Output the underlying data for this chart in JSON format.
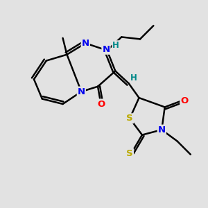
{
  "background_color": "#e2e2e2",
  "bond_color": "#000000",
  "bond_width": 1.8,
  "atom_colors": {
    "N": "#0000ee",
    "O": "#ff0000",
    "S": "#bbaa00",
    "H": "#008888",
    "C": "#000000"
  },
  "fig_width": 3.0,
  "fig_height": 3.0,
  "dpi": 100,
  "xlim": [
    0,
    10
  ],
  "ylim": [
    0,
    10
  ]
}
